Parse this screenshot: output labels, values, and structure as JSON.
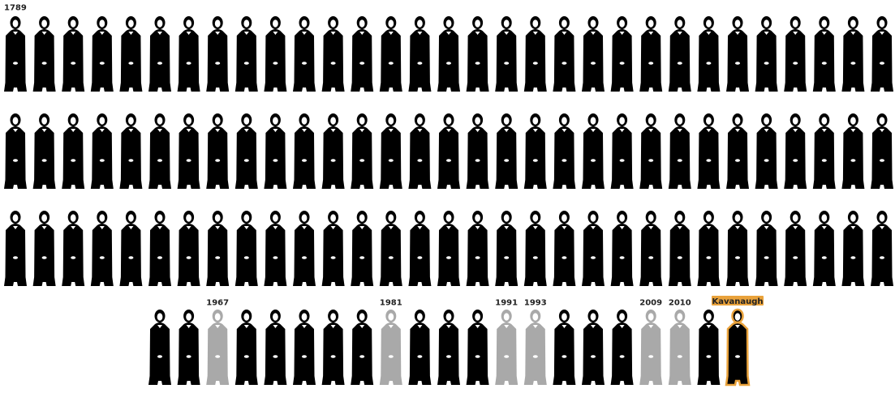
{
  "labels": [
    "1789",
    "1967",
    "1981",
    "1991",
    "1993",
    "2009",
    "2010"
  ],
  "highlight": "Kavanaugh"
}
